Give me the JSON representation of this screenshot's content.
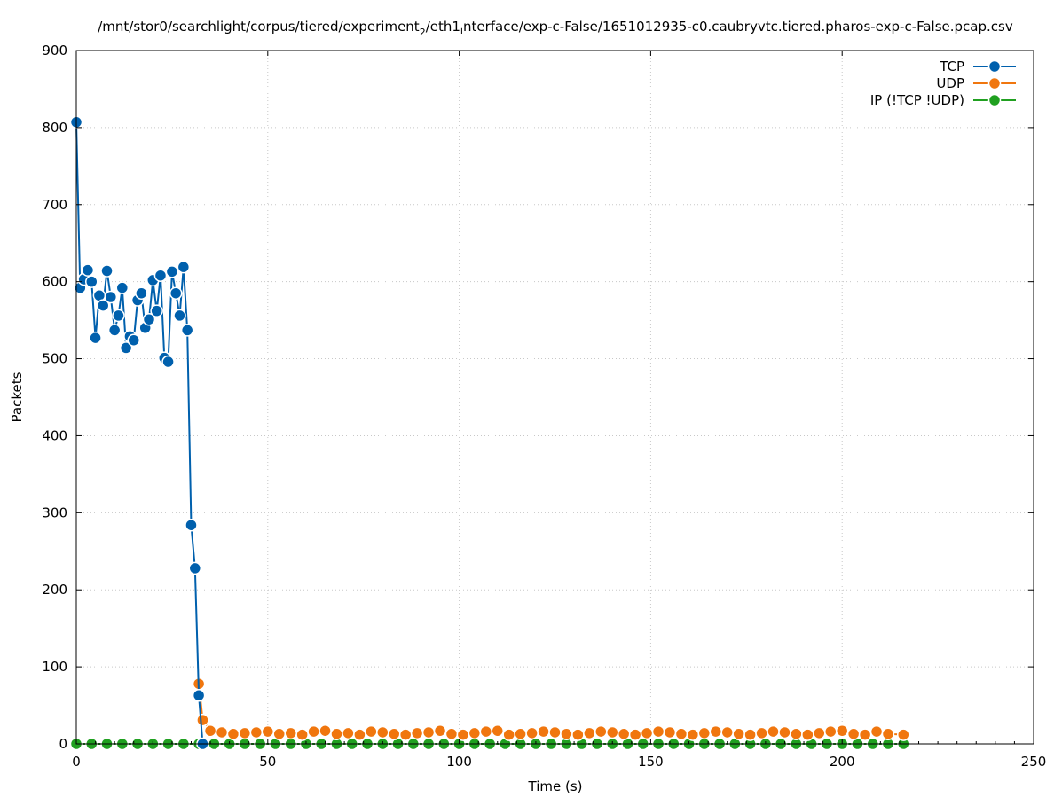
{
  "chart_data": {
    "type": "line",
    "title_parts": [
      "/mnt/stor0/searchlight/corpus/tiered/experiment",
      "2",
      "/eth1",
      "i",
      "nterface/exp-c-False/1651012935-c0.caubryvtc.tiered.pharos-exp-c-False.pcap.csv"
    ],
    "xlabel": "Time (s)",
    "ylabel": "Packets",
    "xlim": [
      0,
      250
    ],
    "ylim": [
      0,
      900
    ],
    "x_ticks": [
      0,
      50,
      100,
      150,
      200,
      250
    ],
    "y_ticks": [
      0,
      100,
      200,
      300,
      400,
      500,
      600,
      700,
      800,
      900
    ],
    "grid": true,
    "legend_position": "top-right",
    "series": [
      {
        "name": "TCP",
        "color": "#0060ad",
        "x": [
          0,
          1,
          2,
          3,
          4,
          5,
          6,
          7,
          8,
          9,
          10,
          11,
          12,
          13,
          14,
          15,
          16,
          17,
          18,
          19,
          20,
          21,
          22,
          23,
          24,
          25,
          26,
          27,
          28,
          29,
          30,
          31,
          32,
          33
        ],
        "y": [
          807,
          592,
          603,
          615,
          600,
          527,
          582,
          569,
          614,
          580,
          537,
          556,
          592,
          514,
          529,
          524,
          576,
          585,
          540,
          551,
          602,
          562,
          608,
          501,
          496,
          613,
          585,
          556,
          619,
          537,
          284,
          228,
          63,
          0
        ]
      },
      {
        "name": "UDP",
        "color": "#f0760e",
        "x": [
          32,
          33,
          35,
          38,
          41,
          44,
          47,
          50,
          53,
          56,
          59,
          62,
          65,
          68,
          71,
          74,
          77,
          80,
          83,
          86,
          89,
          92,
          95,
          98,
          101,
          104,
          107,
          110,
          113,
          116,
          119,
          122,
          125,
          128,
          131,
          134,
          137,
          140,
          143,
          146,
          149,
          152,
          155,
          158,
          161,
          164,
          167,
          170,
          173,
          176,
          179,
          182,
          185,
          188,
          191,
          194,
          197,
          200,
          203,
          206,
          209,
          212,
          216
        ],
        "y": [
          78,
          31,
          17,
          15,
          13,
          14,
          15,
          16,
          13,
          14,
          12,
          16,
          17,
          13,
          14,
          12,
          16,
          15,
          13,
          12,
          14,
          15,
          17,
          13,
          12,
          14,
          16,
          17,
          12,
          13,
          14,
          16,
          15,
          13,
          12,
          14,
          16,
          15,
          13,
          12,
          14,
          16,
          15,
          13,
          12,
          14,
          16,
          15,
          13,
          12,
          14,
          16,
          15,
          13,
          12,
          14,
          16,
          17,
          13,
          12,
          16,
          13,
          12
        ]
      },
      {
        "name": "IP (!TCP  !UDP)",
        "color": "#20a020",
        "x": [
          0,
          4,
          8,
          12,
          16,
          20,
          24,
          28,
          32,
          36,
          40,
          44,
          48,
          52,
          56,
          60,
          64,
          68,
          72,
          76,
          80,
          84,
          88,
          92,
          96,
          100,
          104,
          108,
          112,
          116,
          120,
          124,
          128,
          132,
          136,
          140,
          144,
          148,
          152,
          156,
          160,
          164,
          168,
          172,
          176,
          180,
          184,
          188,
          192,
          196,
          200,
          204,
          208,
          212,
          216
        ],
        "y": [
          0,
          0,
          0,
          0,
          0,
          0,
          0,
          0,
          0,
          0,
          0,
          0,
          0,
          0,
          0,
          0,
          0,
          0,
          0,
          0,
          0,
          0,
          0,
          0,
          0,
          0,
          0,
          0,
          0,
          0,
          0,
          0,
          0,
          0,
          0,
          0,
          0,
          0,
          0,
          0,
          0,
          0,
          0,
          0,
          0,
          0,
          0,
          0,
          0,
          0,
          0,
          0,
          0,
          0,
          0
        ]
      }
    ]
  }
}
